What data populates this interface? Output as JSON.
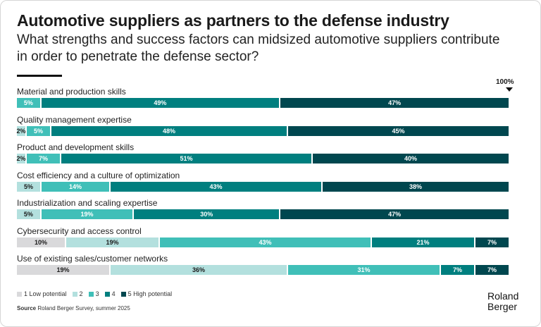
{
  "title": "Automotive suppliers as partners to the defense industry",
  "subtitle": "What strengths and success factors can midsized automotive suppliers contribute in order to penetrate the defense sector?",
  "chart_data": {
    "type": "bar",
    "orientation": "horizontal-stacked-100",
    "total_label": "100%",
    "levels": [
      "1 Low potential",
      "2",
      "3",
      "4",
      "5 High potential"
    ],
    "colors": [
      "#d9d9db",
      "#b3e0de",
      "#40bfb8",
      "#007f7f",
      "#00474f"
    ],
    "categories": [
      "Material and production skills",
      "Quality management expertise",
      "Product and development skills",
      "Cost efficiency and a culture of optimization",
      "Industrialization and scaling expertise",
      "Cybersecurity and access control",
      "Use of existing sales/customer networks"
    ],
    "series": [
      {
        "name": "1 Low potential",
        "values": [
          0,
          0,
          0,
          0,
          0,
          10,
          19
        ]
      },
      {
        "name": "2",
        "values": [
          0,
          2,
          2,
          5,
          5,
          19,
          36
        ]
      },
      {
        "name": "3",
        "values": [
          5,
          5,
          7,
          14,
          19,
          43,
          31
        ]
      },
      {
        "name": "4",
        "values": [
          49,
          48,
          51,
          43,
          30,
          21,
          7
        ]
      },
      {
        "name": "5 High potential",
        "values": [
          47,
          45,
          40,
          38,
          47,
          7,
          7
        ]
      }
    ],
    "legend_placement": "bottom-left"
  },
  "source_label": "Source",
  "source_text": "Roland Berger Survey, summer 2025",
  "logo": "Roland Berger"
}
